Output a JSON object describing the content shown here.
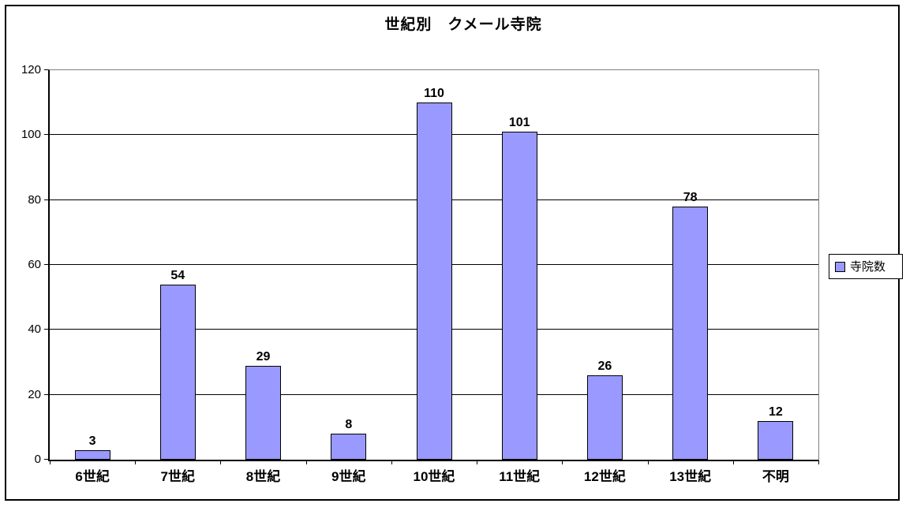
{
  "title": "世紀別　クメール寺院",
  "legend": {
    "label": "寺院数",
    "swatch_color": "#9999FF"
  },
  "chart_data": {
    "type": "bar",
    "title": "世紀別　クメール寺院",
    "categories": [
      "6世紀",
      "7世紀",
      "8世紀",
      "9世紀",
      "10世紀",
      "11世紀",
      "12世紀",
      "13世紀",
      "不明"
    ],
    "series": [
      {
        "name": "寺院数",
        "values": [
          3,
          54,
          29,
          8,
          110,
          101,
          26,
          78,
          12
        ]
      }
    ],
    "xlabel": "",
    "ylabel": "",
    "ylim": [
      0,
      120
    ],
    "yticks": [
      0,
      20,
      40,
      60,
      80,
      100,
      120
    ],
    "grid": true,
    "data_labels": true,
    "legend_position": "right",
    "bar_color": "#9999FF",
    "bar_border_color": "#000000",
    "axis_color": "#000000",
    "plot_border_color": "#808080",
    "gridline_color": "#000000"
  }
}
